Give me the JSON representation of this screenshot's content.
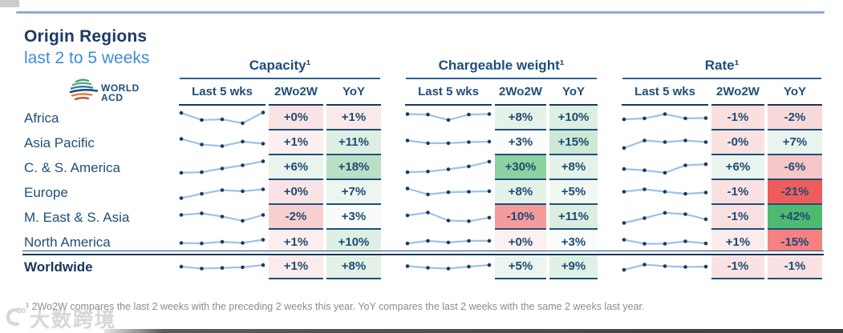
{
  "title": "Origin Regions",
  "subtitle": "last 2 to 5 weeks",
  "logo": {
    "line1": "WORLD",
    "line2": "ACD"
  },
  "groups": [
    {
      "label": "Capacity¹"
    },
    {
      "label": "Chargeable weight¹"
    },
    {
      "label": "Rate¹"
    }
  ],
  "columns": [
    "Last 5 wks",
    "2Wo2W",
    "YoY"
  ],
  "colors": {
    "navy_text": "#1f4e79",
    "separator": "#1f4e79",
    "top_rule": "#8faadc",
    "spark_line": "#9dc3e6",
    "spark_dot": "#1f3864"
  },
  "chart_data": {
    "type": "table",
    "title": "Origin Regions last 2 to 5 weeks",
    "metric_groups": [
      "Capacity",
      "Chargeable weight",
      "Rate"
    ],
    "metric_columns": [
      "Last 5 wks",
      "2Wo2W",
      "YoY"
    ],
    "rows": [
      {
        "region": "Africa",
        "bold": false,
        "capacity": {
          "spark": [
            0.18,
            0.62,
            0.58,
            0.82,
            0.15
          ],
          "wow": {
            "v": "+0%",
            "bg": "#fae3e4"
          },
          "yoy": {
            "v": "+1%",
            "bg": "#fbe9e9"
          }
        },
        "chargeable": {
          "spark": [
            0.25,
            0.28,
            0.62,
            0.28,
            0.25
          ],
          "wow": {
            "v": "+8%",
            "bg": "#e4f2e8"
          },
          "yoy": {
            "v": "+10%",
            "bg": "#dcefe2"
          }
        },
        "rate": {
          "spark": [
            0.58,
            0.52,
            0.25,
            0.52,
            0.5
          ],
          "wow": {
            "v": "-1%",
            "bg": "#fadfdf"
          },
          "yoy": {
            "v": "-2%",
            "bg": "#f8d9d9"
          }
        }
      },
      {
        "region": "Asia Pacific",
        "bold": false,
        "capacity": {
          "spark": [
            0.25,
            0.6,
            0.7,
            0.42,
            0.55
          ],
          "wow": {
            "v": "+1%",
            "bg": "#fdeff0"
          },
          "yoy": {
            "v": "+11%",
            "bg": "#ddefe3"
          }
        },
        "chargeable": {
          "spark": [
            0.35,
            0.52,
            0.52,
            0.45,
            0.42
          ],
          "wow": {
            "v": "+3%",
            "bg": "#fbfdfc"
          },
          "yoy": {
            "v": "+15%",
            "bg": "#cde8d5"
          }
        },
        "rate": {
          "spark": [
            0.82,
            0.35,
            0.45,
            0.35,
            0.45
          ],
          "wow": {
            "v": "-0%",
            "bg": "#fae2e2"
          },
          "yoy": {
            "v": "+7%",
            "bg": "#eaf4ee"
          }
        }
      },
      {
        "region": "C. & S. America",
        "bold": false,
        "capacity": {
          "spark": [
            0.82,
            0.78,
            0.55,
            0.35,
            0.1
          ],
          "wow": {
            "v": "+6%",
            "bg": "#e9f4ed"
          },
          "yoy": {
            "v": "+18%",
            "bg": "#b9e0c5"
          }
        },
        "chargeable": {
          "spark": [
            0.78,
            0.74,
            0.6,
            0.42,
            0.12
          ],
          "wow": {
            "v": "+30%",
            "bg": "#8dd2a1"
          },
          "yoy": {
            "v": "+8%",
            "bg": "#e4f2e8"
          }
        },
        "rate": {
          "spark": [
            0.58,
            0.66,
            0.82,
            0.35,
            0.28
          ],
          "wow": {
            "v": "+6%",
            "bg": "#ebf5ef"
          },
          "yoy": {
            "v": "-6%",
            "bg": "#f7c6c6"
          }
        }
      },
      {
        "region": "Europe",
        "bold": false,
        "capacity": {
          "spark": [
            0.85,
            0.58,
            0.35,
            0.42,
            0.3
          ],
          "wow": {
            "v": "+0%",
            "bg": "#fae3e4"
          },
          "yoy": {
            "v": "+7%",
            "bg": "#ecf5f0"
          }
        },
        "chargeable": {
          "spark": [
            0.25,
            0.62,
            0.48,
            0.45,
            0.42
          ],
          "wow": {
            "v": "+8%",
            "bg": "#e5f2e9"
          },
          "yoy": {
            "v": "+5%",
            "bg": "#f1f8f4"
          }
        },
        "rate": {
          "spark": [
            0.45,
            0.3,
            0.45,
            0.58,
            0.5
          ],
          "wow": {
            "v": "-1%",
            "bg": "#fae1e1"
          },
          "yoy": {
            "v": "-21%",
            "bg": "#ef5c5c"
          }
        }
      },
      {
        "region": "M. East & S. Asia",
        "bold": false,
        "capacity": {
          "spark": [
            0.35,
            0.25,
            0.45,
            0.72,
            0.35
          ],
          "wow": {
            "v": "-2%",
            "bg": "#f7cfcf"
          },
          "yoy": {
            "v": "+3%",
            "bg": "#f8fbfa"
          }
        },
        "chargeable": {
          "spark": [
            0.38,
            0.2,
            0.7,
            0.74,
            0.52
          ],
          "wow": {
            "v": "-10%",
            "bg": "#f59b9b"
          },
          "yoy": {
            "v": "+11%",
            "bg": "#dceee2"
          }
        },
        "rate": {
          "spark": [
            0.85,
            0.55,
            0.22,
            0.3,
            0.62
          ],
          "wow": {
            "v": "-1%",
            "bg": "#fae1e1"
          },
          "yoy": {
            "v": "+42%",
            "bg": "#4eba70"
          }
        }
      },
      {
        "region": "North America",
        "bold": false,
        "capacity": {
          "spark": [
            0.55,
            0.58,
            0.48,
            0.55,
            0.35
          ],
          "wow": {
            "v": "+1%",
            "bg": "#fdeeee"
          },
          "yoy": {
            "v": "+10%",
            "bg": "#def0e4"
          }
        },
        "chargeable": {
          "spark": [
            0.58,
            0.42,
            0.52,
            0.42,
            0.42
          ],
          "wow": {
            "v": "+0%",
            "bg": "#fdf0f0"
          },
          "yoy": {
            "v": "+3%",
            "bg": "#fafcfb"
          }
        },
        "rate": {
          "spark": [
            0.35,
            0.6,
            0.6,
            0.45,
            0.58
          ],
          "wow": {
            "v": "+1%",
            "bg": "#fcebeb"
          },
          "yoy": {
            "v": "-15%",
            "bg": "#f58181"
          }
        }
      },
      {
        "region": "Worldwide",
        "bold": true,
        "capacity": {
          "spark": [
            0.48,
            0.6,
            0.56,
            0.52,
            0.38
          ],
          "wow": {
            "v": "+1%",
            "bg": "#fcebeb"
          },
          "yoy": {
            "v": "+8%",
            "bg": "#e3f1e7"
          }
        },
        "chargeable": {
          "spark": [
            0.45,
            0.55,
            0.6,
            0.48,
            0.38
          ],
          "wow": {
            "v": "+5%",
            "bg": "#ecf5ef"
          },
          "yoy": {
            "v": "+9%",
            "bg": "#dff0e5"
          }
        },
        "rate": {
          "spark": [
            0.68,
            0.35,
            0.45,
            0.5,
            0.48
          ],
          "wow": {
            "v": "-1%",
            "bg": "#fae2e2"
          },
          "yoy": {
            "v": "-1%",
            "bg": "#fae2e2"
          }
        }
      }
    ]
  },
  "footnote": "¹ 2Wo2W compares the last 2 weeks with the preceding 2 weeks this year. YoY compares the last 2 weeks with the same 2 weeks last year.",
  "watermark": "大数跨境"
}
